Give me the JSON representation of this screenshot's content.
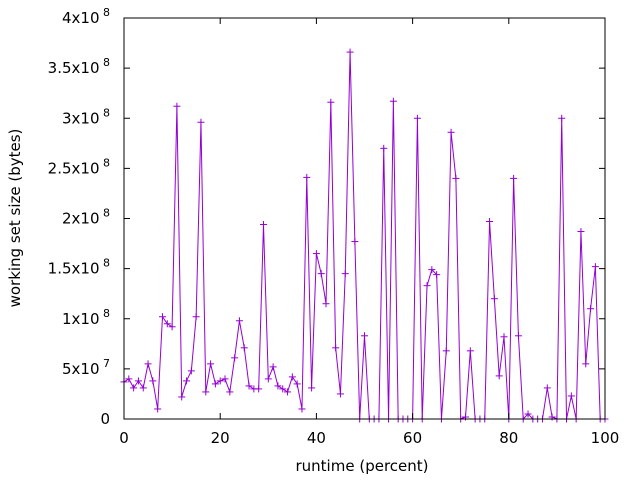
{
  "chart_data": {
    "type": "line",
    "xlabel": "runtime (percent)",
    "ylabel": "working set size (bytes)",
    "xlim": [
      0,
      100
    ],
    "ylim": [
      0,
      400000000
    ],
    "grid": false,
    "legend": "none",
    "series_color": "#9400d3",
    "x_ticks": [
      {
        "value": 0,
        "label": "0"
      },
      {
        "value": 20,
        "label": "20"
      },
      {
        "value": 40,
        "label": "40"
      },
      {
        "value": 60,
        "label": "60"
      },
      {
        "value": 80,
        "label": "80"
      },
      {
        "value": 100,
        "label": "100"
      }
    ],
    "y_ticks": [
      {
        "value": 0,
        "mantissa": "0",
        "exp": ""
      },
      {
        "value": 50000000,
        "mantissa": "5x10",
        "exp": "7"
      },
      {
        "value": 100000000,
        "mantissa": "1x10",
        "exp": "8"
      },
      {
        "value": 150000000,
        "mantissa": "1.5x10",
        "exp": "8"
      },
      {
        "value": 200000000,
        "mantissa": "2x10",
        "exp": "8"
      },
      {
        "value": 250000000,
        "mantissa": "2.5x10",
        "exp": "8"
      },
      {
        "value": 300000000,
        "mantissa": "3x10",
        "exp": "8"
      },
      {
        "value": 350000000,
        "mantissa": "3.5x10",
        "exp": "8"
      },
      {
        "value": 400000000,
        "mantissa": "4x10",
        "exp": "8"
      }
    ],
    "series": [
      {
        "x": [
          0,
          1,
          2,
          3,
          4,
          5,
          6,
          7,
          8,
          9,
          10,
          11,
          12,
          13,
          14,
          15,
          16,
          17,
          18,
          19,
          20,
          21,
          22,
          23,
          24,
          25,
          26,
          27,
          28,
          29,
          30,
          31,
          32,
          33,
          34,
          35,
          36,
          37,
          38,
          39,
          40,
          41,
          42,
          43,
          44,
          45,
          46,
          47,
          48,
          49,
          50,
          51,
          52,
          53,
          54,
          55,
          56,
          57,
          58,
          59,
          60,
          61,
          62,
          63,
          64,
          65,
          66,
          67,
          68,
          69,
          70,
          71,
          72,
          73,
          74,
          75,
          76,
          77,
          78,
          79,
          80,
          81,
          82,
          83,
          84,
          85,
          86,
          87,
          88,
          89,
          90,
          91,
          92,
          93,
          94,
          95,
          96,
          97,
          98,
          99,
          100
        ],
        "y": [
          37000000,
          40000000,
          31000000,
          38000000,
          31000000,
          55000000,
          38000000,
          10000000,
          102000000,
          95000000,
          92000000,
          312000000,
          22000000,
          38000000,
          48000000,
          102000000,
          296000000,
          27000000,
          55000000,
          35000000,
          38000000,
          40000000,
          27000000,
          61000000,
          98000000,
          71000000,
          33000000,
          30000000,
          30000000,
          194000000,
          40000000,
          52000000,
          33000000,
          30000000,
          27000000,
          42000000,
          35000000,
          10000000,
          241000000,
          31000000,
          165000000,
          145000000,
          115000000,
          316000000,
          71000000,
          25000000,
          145000000,
          366000000,
          177000000,
          0,
          83000000,
          0,
          0,
          0,
          270000000,
          0,
          317000000,
          0,
          0,
          0,
          0,
          300000000,
          0,
          133000000,
          149000000,
          144000000,
          0,
          68000000,
          286000000,
          240000000,
          0,
          2000000,
          68000000,
          0,
          0,
          0,
          197000000,
          120000000,
          43000000,
          82000000,
          0,
          240000000,
          83000000,
          0,
          5000000,
          0,
          0,
          0,
          31000000,
          2000000,
          0,
          300000000,
          0,
          23000000,
          0,
          187000000,
          55000000,
          110000000,
          152000000,
          0,
          0
        ]
      }
    ]
  }
}
